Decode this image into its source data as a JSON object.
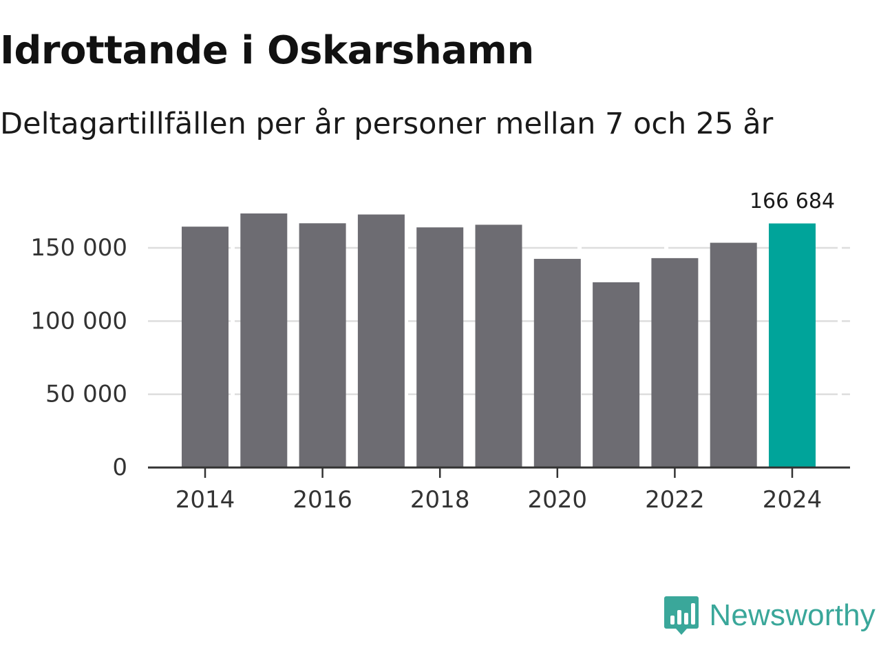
{
  "header": {
    "title": "Idrottande i Oskarshamn",
    "subtitle": "Deltagartillfällen per år personer mellan 7 och 25 år"
  },
  "chart_data": {
    "type": "bar",
    "title": "Idrottande i Oskarshamn",
    "subtitle": "Deltagartillfällen per år personer mellan 7 och 25 år",
    "xlabel": "",
    "ylabel": "",
    "categories": [
      "2014",
      "2015",
      "2016",
      "2017",
      "2018",
      "2019",
      "2020",
      "2021",
      "2022",
      "2023",
      "2024"
    ],
    "values": [
      164500,
      173500,
      166800,
      172800,
      164000,
      165800,
      142500,
      126500,
      143000,
      153500,
      166684
    ],
    "ylim": [
      0,
      180000
    ],
    "yticks": [
      0,
      50000,
      100000,
      150000
    ],
    "ytick_labels": [
      "0",
      "50 000",
      "100 000",
      "150 000"
    ],
    "xtick_labels": [
      "2014",
      "2016",
      "2018",
      "2020",
      "2022",
      "2024"
    ],
    "grid": true,
    "highlight_index": 10,
    "annotations": [
      {
        "category": "2024",
        "text": "166 684"
      }
    ],
    "colors": {
      "bar": "#6d6c72",
      "highlight": "#00a49a",
      "grid": "#dddddd",
      "axis": "#333333"
    }
  },
  "branding": {
    "name": "Newsworthy",
    "logo_icon": "newsworthy-logo-icon",
    "color": "#3aa79a"
  }
}
